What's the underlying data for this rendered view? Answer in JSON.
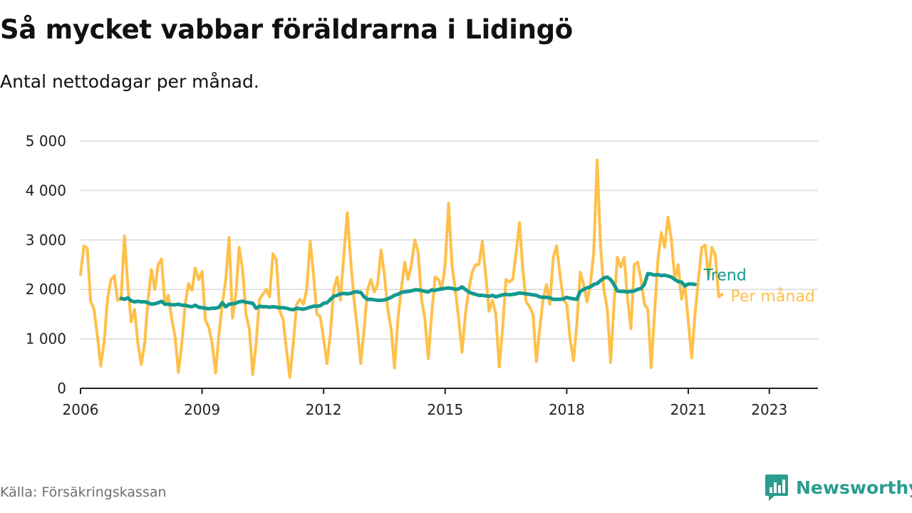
{
  "title": "Så mycket vabbar föräldrarna i Lidingö",
  "subtitle": "Antal nettodagar per månad.",
  "source": "Källa: Försäkringskassan",
  "brand": {
    "name": "Newsworthy",
    "icon": "bar-chart-speech-bubble-icon"
  },
  "colors": {
    "monthly": "#ffc04a",
    "trend": "#13998f",
    "grid": "#d9d9d9",
    "axis": "#222222",
    "brand": "#2a9d8f"
  },
  "chart_data": {
    "type": "line",
    "title": "Så mycket vabbar föräldrarna i Lidingö",
    "subtitle": "Antal nettodagar per månad.",
    "xlabel": "",
    "ylabel": "",
    "xlim": [
      2006,
      2024.2
    ],
    "ylim": [
      0,
      5000
    ],
    "x_ticks": [
      {
        "value": 2006,
        "label": "2006"
      },
      {
        "value": 2009,
        "label": "2009"
      },
      {
        "value": 2012,
        "label": "2012"
      },
      {
        "value": 2015,
        "label": "2015"
      },
      {
        "value": 2018,
        "label": "2018"
      },
      {
        "value": 2021,
        "label": "2021"
      },
      {
        "value": 2023,
        "label": "2023"
      }
    ],
    "y_ticks": [
      {
        "value": 0,
        "label": "0"
      },
      {
        "value": 1000,
        "label": "1 000"
      },
      {
        "value": 2000,
        "label": "2 000"
      },
      {
        "value": 3000,
        "label": "3 000"
      },
      {
        "value": 4000,
        "label": "4 000"
      },
      {
        "value": 5000,
        "label": "5 000"
      }
    ],
    "grid": true,
    "legend": "end-of-line labels",
    "series": [
      {
        "name": "Per månad",
        "color": "#ffc04a",
        "start": "2006-01",
        "values": [
          2300,
          2880,
          2830,
          1760,
          1600,
          1050,
          450,
          950,
          1800,
          2200,
          2280,
          1780,
          1800,
          3080,
          2100,
          1340,
          1600,
          900,
          480,
          900,
          1800,
          2400,
          2000,
          2500,
          2620,
          1700,
          1880,
          1400,
          1050,
          320,
          900,
          1700,
          2120,
          1980,
          2430,
          2200,
          2360,
          1380,
          1230,
          900,
          310,
          1100,
          1700,
          2200,
          3050,
          1420,
          1900,
          2850,
          2400,
          1500,
          1200,
          280,
          900,
          1800,
          1900,
          2000,
          1850,
          2720,
          2600,
          1560,
          1400,
          780,
          220,
          900,
          1700,
          1800,
          1700,
          2000,
          2980,
          2300,
          1500,
          1450,
          1000,
          500,
          1100,
          2000,
          2250,
          1780,
          2700,
          3550,
          2600,
          1800,
          1200,
          500,
          1200,
          2000,
          2200,
          1950,
          2100,
          2800,
          2300,
          1600,
          1200,
          410,
          1400,
          2000,
          2550,
          2200,
          2500,
          3000,
          2750,
          1800,
          1400,
          600,
          1500,
          2250,
          2200,
          2000,
          2500,
          3740,
          2500,
          2000,
          1400,
          730,
          1500,
          2000,
          2350,
          2500,
          2500,
          2970,
          2300,
          1560,
          1780,
          1500,
          430,
          1200,
          2200,
          2150,
          2200,
          2730,
          3350,
          2400,
          1750,
          1650,
          1500,
          540,
          1200,
          1800,
          2100,
          1700,
          2650,
          2880,
          2300,
          1800,
          1700,
          1000,
          560,
          1300,
          2350,
          2100,
          1750,
          2100,
          2750,
          4620,
          2900,
          2000,
          1600,
          520,
          1700,
          2650,
          2450,
          2650,
          1820,
          1200,
          2500,
          2550,
          2200,
          1700,
          1600,
          420,
          1500,
          2600,
          3150,
          2850,
          3460,
          3000,
          2200,
          2500,
          1800,
          2100,
          1350,
          620,
          1500,
          2200,
          2850,
          2900,
          2250,
          2850,
          2700,
          1850,
          1900
        ]
      },
      {
        "name": "Trend",
        "color": "#13998f",
        "start": "2007-01",
        "values": [
          1820,
          1800,
          1830,
          1770,
          1750,
          1760,
          1750,
          1750,
          1730,
          1700,
          1710,
          1730,
          1760,
          1700,
          1700,
          1690,
          1690,
          1700,
          1680,
          1680,
          1660,
          1650,
          1680,
          1640,
          1630,
          1620,
          1610,
          1620,
          1620,
          1640,
          1730,
          1650,
          1700,
          1710,
          1720,
          1750,
          1760,
          1740,
          1730,
          1720,
          1620,
          1660,
          1650,
          1650,
          1640,
          1650,
          1640,
          1630,
          1630,
          1620,
          1600,
          1590,
          1620,
          1610,
          1600,
          1620,
          1640,
          1660,
          1660,
          1670,
          1720,
          1730,
          1800,
          1860,
          1880,
          1910,
          1920,
          1910,
          1920,
          1950,
          1950,
          1940,
          1850,
          1800,
          1800,
          1790,
          1780,
          1780,
          1790,
          1810,
          1840,
          1880,
          1900,
          1940,
          1950,
          1960,
          1970,
          1990,
          1990,
          1980,
          1960,
          1950,
          1990,
          1980,
          2000,
          2010,
          2020,
          2030,
          2020,
          2000,
          2010,
          2050,
          2000,
          1950,
          1920,
          1900,
          1880,
          1880,
          1870,
          1860,
          1880,
          1850,
          1870,
          1890,
          1900,
          1890,
          1900,
          1910,
          1930,
          1920,
          1910,
          1900,
          1890,
          1880,
          1850,
          1840,
          1840,
          1830,
          1800,
          1800,
          1800,
          1810,
          1840,
          1820,
          1810,
          1800,
          1960,
          2000,
          2030,
          2050,
          2100,
          2120,
          2180,
          2230,
          2250,
          2200,
          2100,
          1970,
          1960,
          1960,
          1950,
          1960,
          1970,
          2000,
          2020,
          2100,
          2320,
          2310,
          2290,
          2300,
          2280,
          2290,
          2270,
          2250,
          2200,
          2160,
          2150,
          2070,
          2110,
          2110,
          2100
        ]
      }
    ]
  }
}
